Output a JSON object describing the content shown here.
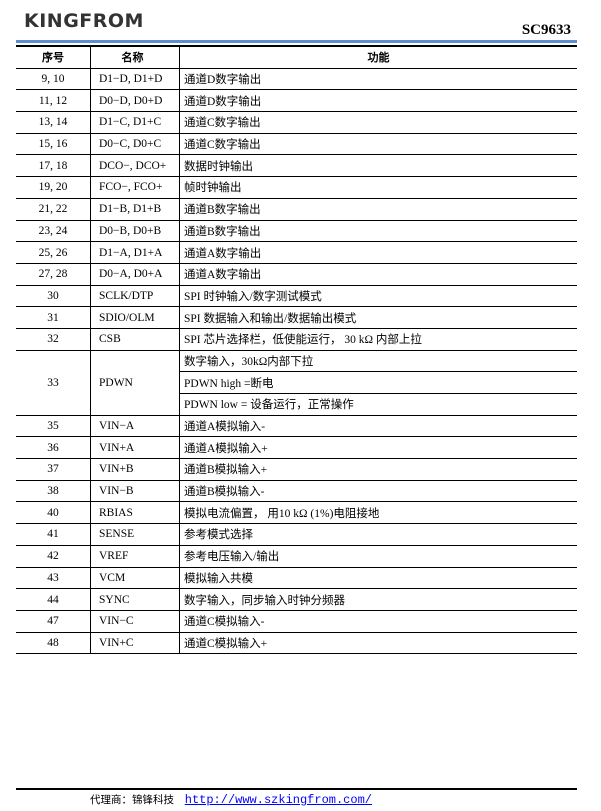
{
  "header": {
    "logo": "KINGFROM",
    "doc_id": "SC9633",
    "rule_color": "#5b8fd0"
  },
  "table": {
    "columns": [
      "序号",
      "名称",
      "功能"
    ],
    "rows": [
      {
        "no": "9, 10",
        "name": "D1−D, D1+D",
        "func": "通道D数字输出"
      },
      {
        "no": "11, 12",
        "name": "D0−D, D0+D",
        "func": "通道D数字输出"
      },
      {
        "no": "13, 14",
        "name": "D1−C, D1+C",
        "func": "通道C数字输出"
      },
      {
        "no": "15, 16",
        "name": "D0−C, D0+C",
        "func": "通道C数字输出"
      },
      {
        "no": "17, 18",
        "name": "DCO−, DCO+",
        "func": "数据时钟输出"
      },
      {
        "no": "19, 20",
        "name": "FCO−, FCO+",
        "func": "帧时钟输出"
      },
      {
        "no": "21, 22",
        "name": "D1−B, D1+B",
        "func": "通道B数字输出"
      },
      {
        "no": "23, 24",
        "name": "D0−B, D0+B",
        "func": "通道B数字输出"
      },
      {
        "no": "25, 26",
        "name": "D1−A, D1+A",
        "func": "通道A数字输出"
      },
      {
        "no": "27, 28",
        "name": "D0−A, D0+A",
        "func": "通道A数字输出"
      },
      {
        "no": "30",
        "name": "SCLK/DTP",
        "func": "SPI 时钟输入/数字测试模式"
      },
      {
        "no": "31",
        "name": "SDIO/OLM",
        "func": "SPI 数据输入和输出/数据输出模式"
      },
      {
        "no": "32",
        "name": "CSB",
        "func": "SPI 芯片选择栏，低使能运行， 30 kΩ 内部上拉"
      }
    ],
    "pdwn": {
      "no": "33",
      "name": "PDWN",
      "funcs": [
        "数字输入，30kΩ内部下拉",
        "PDWN high =断电",
        "PDWN low = 设备运行，正常操作"
      ]
    },
    "rows2": [
      {
        "no": "35",
        "name": "VIN−A",
        "func": "通道A模拟输入-"
      },
      {
        "no": "36",
        "name": "VIN+A",
        "func": "通道A模拟输入+"
      },
      {
        "no": "37",
        "name": "VIN+B",
        "func": "通道B模拟输入+"
      },
      {
        "no": "38",
        "name": "VIN−B",
        "func": "通道B模拟输入-"
      },
      {
        "no": "40",
        "name": "RBIAS",
        "func": "模拟电流偏置， 用10 kΩ (1%)电阻接地"
      },
      {
        "no": "41",
        "name": "SENSE",
        "func": "参考模式选择"
      },
      {
        "no": "42",
        "name": "VREF",
        "func": "参考电压输入/输出"
      },
      {
        "no": "43",
        "name": "VCM",
        "func": "模拟输入共模"
      },
      {
        "no": "44",
        "name": "SYNC",
        "func": "数字输入，同步输入时钟分频器"
      },
      {
        "no": "47",
        "name": "VIN−C",
        "func": "通道C模拟输入-"
      },
      {
        "no": "48",
        "name": "VIN+C",
        "func": "通道C模拟输入+"
      }
    ]
  },
  "footer": {
    "agent": "代理商：锦锋科技",
    "url": "http://www.szkingfrom.com/"
  }
}
